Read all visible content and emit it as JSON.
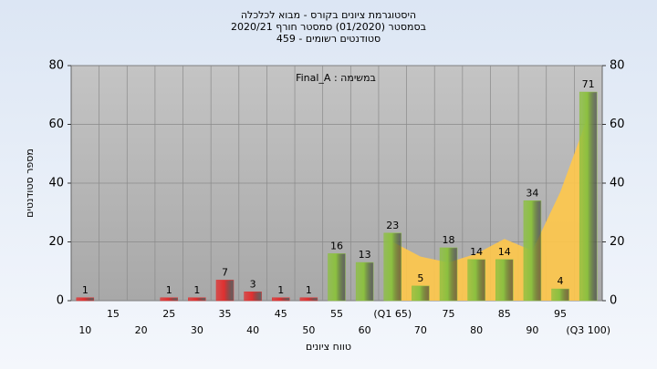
{
  "chart_data": {
    "type": "bar",
    "title": [
      "היסטוגרמת ציונים בקורס - מבוא לכלכלה",
      "בסמסטר  (01/2020)  סמסטר חורף 2020/21",
      "סטודנטים רשומים - 459"
    ],
    "annotation": "Final_A : במשימה",
    "xlabel": "טווח ציונים",
    "ylabel": "מספר סטודנטים",
    "categories": [
      "10",
      "15",
      "20",
      "25",
      "30",
      "35",
      "40",
      "45",
      "50",
      "55",
      "60",
      "(Q1 65)",
      "70",
      "75",
      "80",
      "85",
      "90",
      "95",
      "(Q3 100)"
    ],
    "values": [
      1,
      0,
      0,
      1,
      1,
      7,
      3,
      1,
      1,
      16,
      13,
      23,
      5,
      18,
      14,
      14,
      34,
      4,
      71
    ],
    "colors": [
      "#e03030",
      "#e03030",
      "#e03030",
      "#e03030",
      "#e03030",
      "#e03030",
      "#e03030",
      "#e03030",
      "#e03030",
      "#8cc040",
      "#8cc040",
      "#8cc040",
      "#8cc040",
      "#8cc040",
      "#8cc040",
      "#8cc040",
      "#8cc040",
      "#8cc040",
      "#8cc040"
    ],
    "area": {
      "color": "#ffc84a",
      "values": [
        null,
        null,
        null,
        null,
        null,
        null,
        null,
        null,
        null,
        null,
        null,
        20,
        15,
        13,
        16,
        21,
        17,
        37,
        63
      ]
    },
    "ylim": [
      0,
      80
    ],
    "yticks": [
      0,
      20,
      40,
      60,
      80
    ],
    "y2lim": [
      0,
      80
    ],
    "y2ticks": [
      0,
      20,
      40,
      60,
      80
    ],
    "grid": true
  }
}
